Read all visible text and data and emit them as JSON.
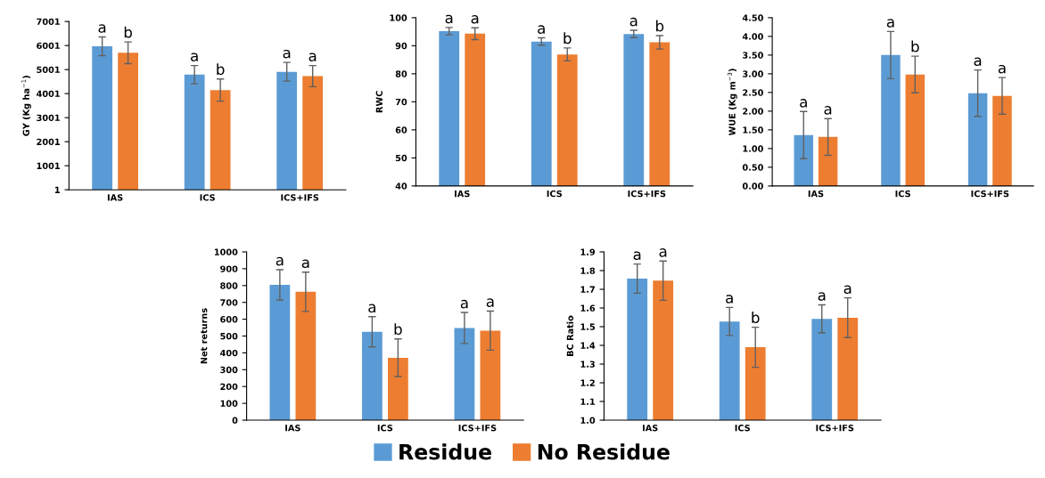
{
  "chart_data": [
    {
      "type": "bar",
      "ylabel": "GY (Kg ha$^{−1}$)",
      "categories": [
        "IAS",
        "ICS",
        "ICS+IFS"
      ],
      "ylim": [
        1,
        7001
      ],
      "yticks": [
        1,
        1001,
        2001,
        3001,
        4001,
        5001,
        6001,
        7001
      ],
      "grid": false,
      "legend": "bottom",
      "series": [
        {
          "name": "Residue",
          "color": "#5b9bd5",
          "values": [
            5970,
            4790,
            4910
          ],
          "errors": [
            390,
            380,
            390
          ]
        },
        {
          "name": "No Residue",
          "color": "#ed7d31",
          "values": [
            5700,
            4150,
            4730
          ],
          "errors": [
            450,
            460,
            440
          ]
        }
      ],
      "annotations": [
        "a",
        "b",
        "a",
        "b",
        "a",
        "a"
      ]
    },
    {
      "type": "bar",
      "ylabel": "RWC",
      "categories": [
        "IAS",
        "ICS",
        "ICS+IFS"
      ],
      "ylim": [
        40,
        100
      ],
      "yticks": [
        40,
        50,
        60,
        70,
        80,
        90,
        100
      ],
      "grid": false,
      "series": [
        {
          "name": "Residue",
          "color": "#5b9bd5",
          "values": [
            95.2,
            91.5,
            94.2
          ],
          "errors": [
            1.3,
            1.3,
            1.3
          ]
        },
        {
          "name": "No Residue",
          "color": "#ed7d31",
          "values": [
            94.3,
            86.9,
            91.2
          ],
          "errors": [
            2.1,
            2.3,
            2.4
          ]
        }
      ],
      "annotations": [
        "a",
        "a",
        "a",
        "b",
        "a",
        "b"
      ]
    },
    {
      "type": "bar",
      "ylabel": "WUE (Kg m$^{−3}$)",
      "categories": [
        "IAS",
        "ICS",
        "ICS+IFS"
      ],
      "ylim": [
        0,
        4.5
      ],
      "yticks": [
        {
          "value": 0,
          "label": "0.00"
        },
        {
          "value": 0.5,
          "label": "0.50"
        },
        {
          "value": 1,
          "label": "1.00"
        },
        {
          "value": 1.5,
          "label": "1.50"
        },
        {
          "value": 2,
          "label": "2.00"
        },
        {
          "value": 2.5,
          "label": "2.50"
        },
        {
          "value": 3,
          "label": "3.00"
        },
        {
          "value": 3.5,
          "label": "3.50"
        },
        {
          "value": 4,
          "label": "4.00"
        },
        {
          "value": 4.5,
          "label": "4.50"
        }
      ],
      "grid": false,
      "series": [
        {
          "name": "Residue",
          "color": "#5b9bd5",
          "values": [
            1.36,
            3.5,
            2.48
          ],
          "errors": [
            0.63,
            0.63,
            0.62
          ]
        },
        {
          "name": "No Residue",
          "color": "#ed7d31",
          "values": [
            1.31,
            2.98,
            2.41
          ],
          "errors": [
            0.49,
            0.49,
            0.49
          ]
        }
      ],
      "annotations": [
        "a",
        "a",
        "a",
        "b",
        "a",
        "a"
      ]
    },
    {
      "type": "bar",
      "ylabel": "Net returns",
      "categories": [
        "IAS",
        "ICS",
        "ICS+IFS"
      ],
      "ylim": [
        0,
        1000
      ],
      "yticks": [
        0,
        100,
        200,
        300,
        400,
        500,
        600,
        700,
        800,
        900,
        1000
      ],
      "grid": false,
      "series": [
        {
          "name": "Residue",
          "color": "#5b9bd5",
          "values": [
            804,
            525,
            548
          ],
          "errors": [
            90,
            90,
            92
          ]
        },
        {
          "name": "No Residue",
          "color": "#ed7d31",
          "values": [
            763,
            371,
            532
          ],
          "errors": [
            117,
            112,
            116
          ]
        }
      ],
      "annotations": [
        "a",
        "a",
        "a",
        "b",
        "a",
        "a"
      ]
    },
    {
      "type": "bar",
      "ylabel": "BC Ratio",
      "categories": [
        "IAS",
        "ICS",
        "ICS+IFS"
      ],
      "ylim": [
        1.0,
        1.9
      ],
      "yticks": [
        {
          "value": 1.0,
          "label": "1.0"
        },
        1.1,
        1.2,
        1.3,
        1.4,
        1.5,
        1.6,
        1.7,
        1.8,
        1.9
      ],
      "grid": false,
      "series": [
        {
          "name": "Residue",
          "color": "#5b9bd5",
          "values": [
            1.757,
            1.528,
            1.542
          ],
          "errors": [
            0.078,
            0.075,
            0.075
          ]
        },
        {
          "name": "No Residue",
          "color": "#ed7d31",
          "values": [
            1.746,
            1.39,
            1.548
          ],
          "errors": [
            0.105,
            0.107,
            0.106
          ]
        }
      ],
      "annotations": [
        "a",
        "a",
        "a",
        "b",
        "a",
        "a"
      ]
    }
  ]
}
